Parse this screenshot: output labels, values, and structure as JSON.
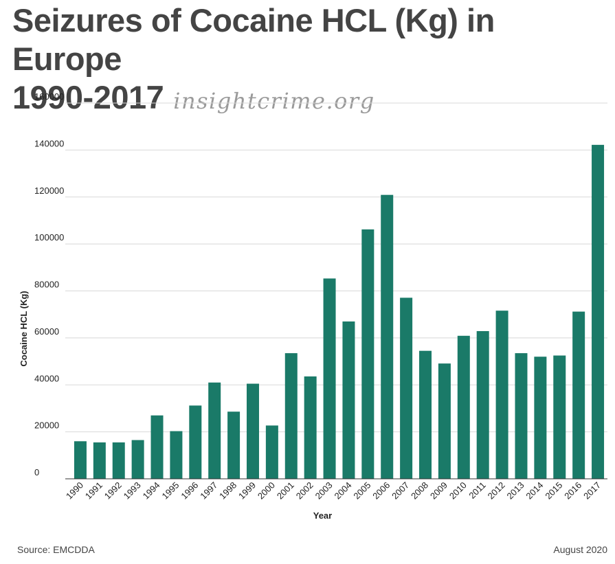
{
  "header": {
    "title_line1": "Seizures of Cocaine HCL (Kg) in Europe",
    "title_line2": "1990-2017",
    "site": "insightcrime.org"
  },
  "footer": {
    "source": "Source: EMCDDA",
    "date": "August 2020"
  },
  "chart_data": {
    "type": "bar",
    "title": "Seizures of Cocaine HCL (Kg) in Europe 1990-2017",
    "xlabel": "Year",
    "ylabel": "Cocaine HCL (Kg)",
    "ylim": [
      0,
      160000
    ],
    "yticks": [
      0,
      20000,
      40000,
      60000,
      80000,
      100000,
      120000,
      140000,
      160000
    ],
    "grid": true,
    "color": "#1a7a68",
    "categories": [
      "1990",
      "1991",
      "1992",
      "1993",
      "1994",
      "1995",
      "1996",
      "1997",
      "1998",
      "1999",
      "2000",
      "2001",
      "2002",
      "2003",
      "2004",
      "2005",
      "2006",
      "2007",
      "2008",
      "2009",
      "2010",
      "2011",
      "2012",
      "2013",
      "2014",
      "2015",
      "2016",
      "2017"
    ],
    "values": [
      16000,
      15500,
      15500,
      16500,
      27000,
      20300,
      31200,
      41000,
      28600,
      40500,
      22700,
      53500,
      43600,
      85300,
      67000,
      106200,
      120900,
      77100,
      54500,
      49100,
      60900,
      62900,
      71600,
      53500,
      52000,
      52500,
      71200,
      142200
    ]
  }
}
